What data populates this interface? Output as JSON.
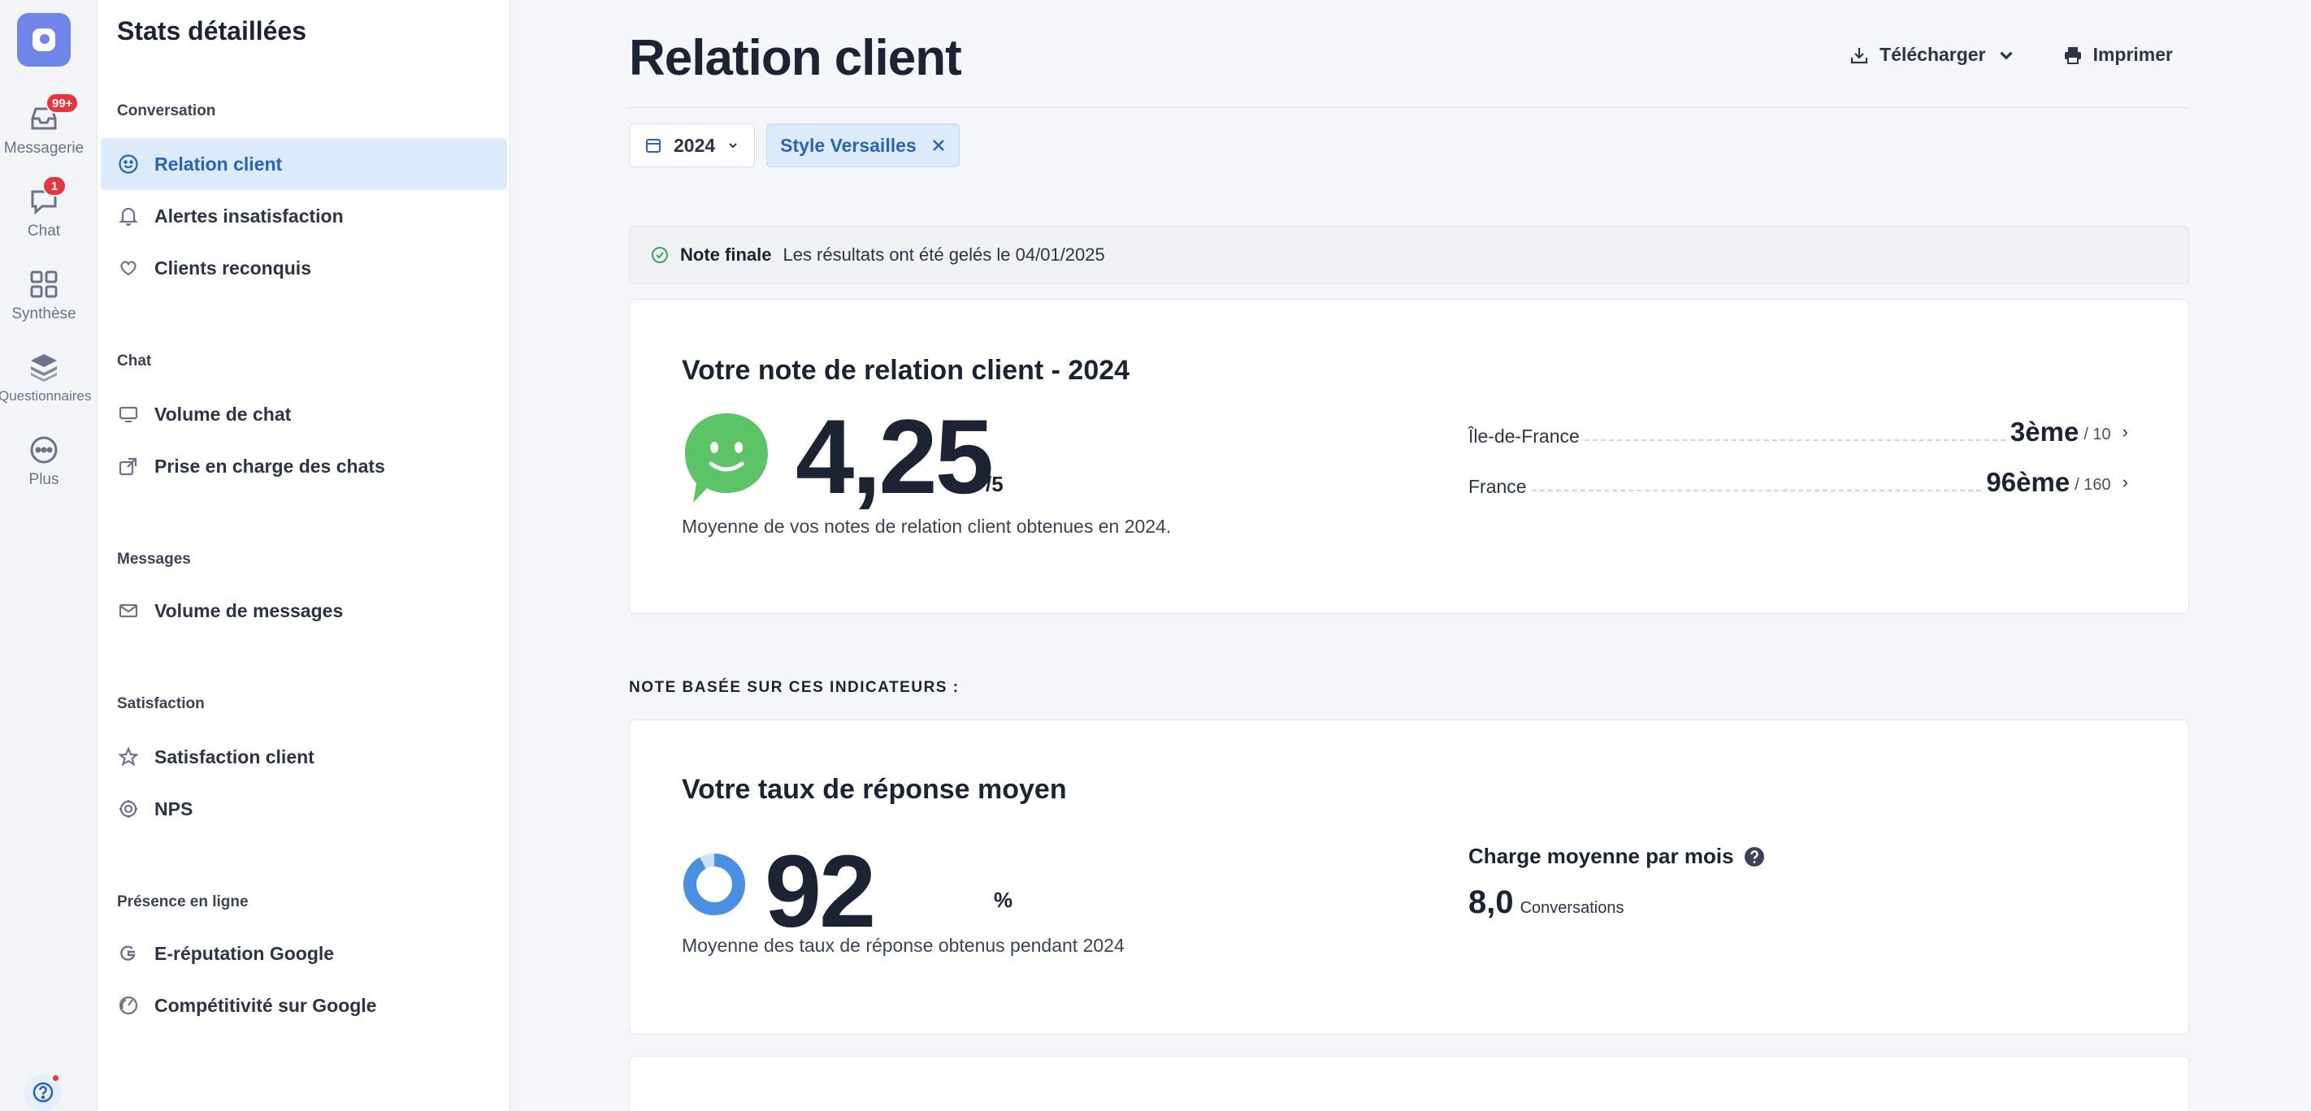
{
  "rail": {
    "items": [
      {
        "label": "Messagerie",
        "icon": "inbox-icon",
        "badge": "99+"
      },
      {
        "label": "Chat",
        "icon": "chat-bubble-icon",
        "badge": "1"
      },
      {
        "label": "Synthèse",
        "icon": "grid-icon",
        "badge": null
      },
      {
        "label": "Questionnaires",
        "icon": "layers-icon",
        "badge": null
      },
      {
        "label": "Plus",
        "icon": "more-icon",
        "badge": null
      }
    ]
  },
  "subnav": {
    "title": "Stats détaillées",
    "sections": [
      {
        "label": "Conversation",
        "items": [
          {
            "label": "Relation client",
            "icon": "smile-icon",
            "active": true
          },
          {
            "label": "Alertes insatisfaction",
            "icon": "bell-icon"
          },
          {
            "label": "Clients reconquis",
            "icon": "heart-hands-icon"
          }
        ]
      },
      {
        "label": "Chat",
        "items": [
          {
            "label": "Volume de chat",
            "icon": "monitor-icon"
          },
          {
            "label": "Prise en charge des chats",
            "icon": "share-icon"
          }
        ]
      },
      {
        "label": "Messages",
        "items": [
          {
            "label": "Volume de messages",
            "icon": "envelope-icon"
          }
        ]
      },
      {
        "label": "Satisfaction",
        "items": [
          {
            "label": "Satisfaction client",
            "icon": "star-icon"
          },
          {
            "label": "NPS",
            "icon": "badge-icon"
          }
        ]
      },
      {
        "label": "Présence en ligne",
        "items": [
          {
            "label": "E-réputation Google",
            "icon": "google-icon"
          },
          {
            "label": "Compétitivité sur Google",
            "icon": "gauge-icon"
          }
        ]
      }
    ]
  },
  "main": {
    "title": "Relation client",
    "actions": {
      "download": "Télécharger",
      "print": "Imprimer"
    },
    "filters": {
      "year": "2024",
      "tag": "Style Versailles"
    },
    "notice": {
      "strong": "Note finale",
      "text": "Les résultats ont été gelés le 04/01/2025"
    },
    "score_card": {
      "title": "Votre note de relation client - 2024",
      "value": "4,25",
      "unit": "/5",
      "subtitle": "Moyenne de vos notes de relation client obtenues en 2024.",
      "ranks": [
        {
          "label": "Île-de-France",
          "position": "3ème",
          "total": "/ 10"
        },
        {
          "label": "France",
          "position": "96ème",
          "total": "/ 160"
        }
      ]
    },
    "section_label": "NOTE BASÉE SUR CES INDICATEURS :",
    "response_card": {
      "title": "Votre taux de réponse moyen",
      "value": "92",
      "unit": "%",
      "percent": 92,
      "subtitle": "Moyenne des taux de réponse obtenus pendant 2024",
      "charge_title": "Charge moyenne par mois",
      "charge_value": "8,0",
      "charge_unit": "Conversations"
    }
  },
  "colors": {
    "accent": "#2b64b6",
    "active_bg": "#dcebfb",
    "badge": "#e5363d",
    "logo": "#6f86e8",
    "smiley": "#5cc466",
    "donut": "#4a90e2"
  }
}
